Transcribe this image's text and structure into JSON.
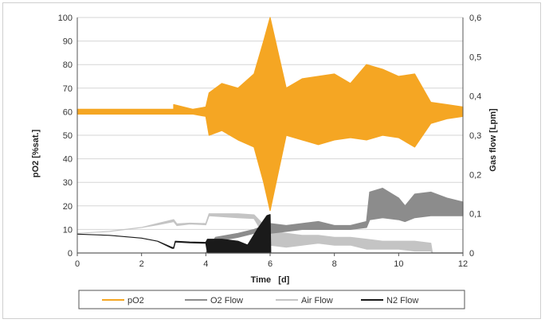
{
  "chart_data": {
    "type": "line",
    "xlabel": "Time   [d]",
    "ylabel_left": "pO2   [%sat.]",
    "ylabel_right": "Gas flow   [Lpm]",
    "xlim": [
      0,
      12
    ],
    "ylim_left": [
      0,
      100
    ],
    "ylim_right": [
      0,
      0.6
    ],
    "x_ticks": [
      "0",
      "2",
      "4",
      "6",
      "8",
      "10",
      "12"
    ],
    "y_left_ticks": [
      "0",
      "10",
      "20",
      "30",
      "40",
      "50",
      "60",
      "70",
      "80",
      "90",
      "100"
    ],
    "y_right_ticks": [
      "0",
      "0,1",
      "0,2",
      "0,3",
      "0,4",
      "0,5",
      "0,6"
    ],
    "grid": "horizontal",
    "legend_position": "bottom",
    "colors": {
      "pO2": "#f5a623",
      "O2 Flow": "#8c8c8c",
      "Air Flow": "#c4c4c4",
      "N2 Flow": "#1a1a1a"
    },
    "series": [
      {
        "name": "pO2",
        "axis": "left",
        "x": [
          0,
          1,
          2,
          3,
          3.0,
          3.6,
          4.0,
          4.1,
          4.5,
          5.0,
          5.5,
          5.8,
          6.0,
          6.5,
          7.0,
          7.5,
          8.0,
          8.5,
          9.0,
          9.5,
          10.0,
          10.5,
          11.0,
          11.5,
          12.0
        ],
        "lower": [
          59,
          59,
          59,
          59,
          59,
          59,
          58,
          50,
          52,
          48,
          45,
          30,
          18,
          50,
          48,
          46,
          48,
          49,
          48,
          50,
          49,
          45,
          55,
          57,
          58
        ],
        "upper": [
          61,
          61,
          61,
          61,
          63,
          61,
          62,
          68,
          72,
          70,
          76,
          90,
          100,
          70,
          74,
          75,
          76,
          72,
          80,
          78,
          75,
          76,
          64,
          63,
          62
        ]
      },
      {
        "name": "O2 Flow",
        "axis": "right",
        "x": [
          0,
          4,
          4.3,
          5,
          5.5,
          6,
          6.5,
          7,
          7.5,
          8,
          8.5,
          9,
          9.1,
          9.5,
          10,
          10.2,
          10.5,
          11,
          11.5,
          12
        ],
        "lower": [
          0,
          0,
          0.03,
          0.04,
          0.05,
          0.05,
          0.055,
          0.06,
          0.06,
          0.06,
          0.06,
          0.065,
          0.085,
          0.09,
          0.085,
          0.08,
          0.09,
          0.095,
          0.095,
          0.095
        ],
        "upper": [
          0,
          0,
          0.04,
          0.05,
          0.06,
          0.075,
          0.07,
          0.075,
          0.08,
          0.07,
          0.07,
          0.08,
          0.155,
          0.165,
          0.14,
          0.12,
          0.15,
          0.155,
          0.14,
          0.13
        ]
      },
      {
        "name": "Air Flow",
        "axis": "right",
        "x": [
          0,
          1,
          2,
          2.5,
          3,
          3.1,
          3.5,
          4,
          4.1,
          5,
          5.5,
          6,
          6.5,
          7,
          7.5,
          8,
          8.5,
          9,
          9.5,
          10,
          10.5,
          11,
          11.05,
          12
        ],
        "lower": [
          0.05,
          0.055,
          0.065,
          0.072,
          0.08,
          0.07,
          0.074,
          0.072,
          0.095,
          0.09,
          0.088,
          0.02,
          0.015,
          0.02,
          0.025,
          0.02,
          0.02,
          0.01,
          0.01,
          0.01,
          0.005,
          0.005,
          0,
          0
        ],
        "upper": [
          0.05,
          0.055,
          0.065,
          0.075,
          0.085,
          0.074,
          0.076,
          0.075,
          0.1,
          0.1,
          0.097,
          0.055,
          0.05,
          0.045,
          0.045,
          0.04,
          0.04,
          0.035,
          0.03,
          0.03,
          0.03,
          0.025,
          0,
          0
        ]
      },
      {
        "name": "N2 Flow",
        "axis": "right",
        "x": [
          0,
          1,
          2,
          2.5,
          2.95,
          3.0,
          3.05,
          3.5,
          4.0,
          4.05,
          4.5,
          5.0,
          5.3,
          5.6,
          5.9,
          6.0,
          6.02,
          7,
          8,
          9,
          10,
          11,
          12
        ],
        "lower": [
          0.048,
          0.045,
          0.038,
          0.03,
          0.012,
          0.012,
          0.028,
          0.026,
          0.025,
          0,
          0,
          0,
          0,
          0,
          0,
          0,
          0,
          0,
          0,
          0,
          0,
          0,
          0
        ],
        "upper": [
          0.048,
          0.045,
          0.038,
          0.03,
          0.014,
          0.014,
          0.03,
          0.028,
          0.027,
          0.035,
          0.035,
          0.03,
          0.02,
          0.06,
          0.095,
          0.098,
          0,
          0,
          0,
          0,
          0,
          0,
          0
        ]
      }
    ]
  }
}
